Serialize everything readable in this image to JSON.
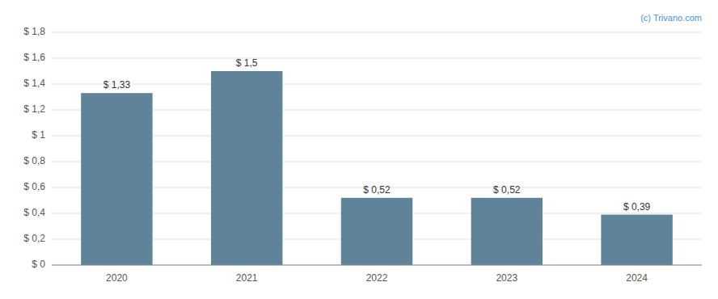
{
  "chart_data": {
    "type": "bar",
    "categories": [
      "2020",
      "2021",
      "2022",
      "2023",
      "2024"
    ],
    "values": [
      1.33,
      1.5,
      0.52,
      0.52,
      0.39
    ],
    "value_labels": [
      "$ 1,33",
      "$ 1,5",
      "$ 0,52",
      "$ 0,52",
      "$ 0,39"
    ],
    "data_labels": true,
    "color": "#5f8499",
    "ylim": [
      0,
      1.8
    ],
    "yticks": [
      {
        "value": 0,
        "label": "$ 0"
      },
      {
        "value": 0.2,
        "label": "$ 0,2"
      },
      {
        "value": 0.4,
        "label": "$ 0,4"
      },
      {
        "value": 0.6,
        "label": "$ 0,6"
      },
      {
        "value": 0.8,
        "label": "$ 0,8"
      },
      {
        "value": 1.0,
        "label": "$ 1"
      },
      {
        "value": 1.2,
        "label": "$ 1,2"
      },
      {
        "value": 1.4,
        "label": "$ 1,4"
      },
      {
        "value": 1.6,
        "label": "$ 1,6"
      },
      {
        "value": 1.8,
        "label": "$ 1,8"
      }
    ],
    "grid": true,
    "annotations": [
      "(c) Trivano.com"
    ]
  }
}
